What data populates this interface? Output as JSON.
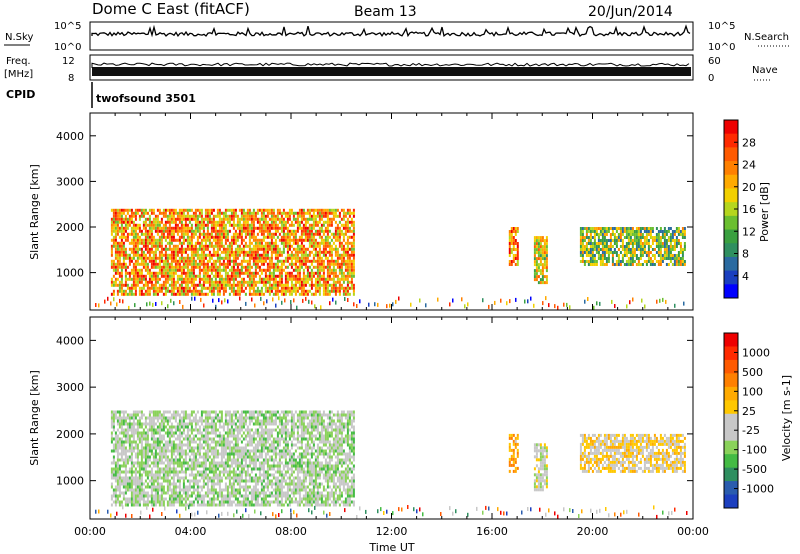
{
  "header": {
    "station": "Dome C East (fitACF)",
    "beam": "Beam 13",
    "date": "20/Jun/2014"
  },
  "small_panels": {
    "nsky_label": "N.Sky",
    "nsky_ticks": [
      "10^5",
      "10^0"
    ],
    "nsearch_label": "N.Search",
    "nsearch_ticks": [
      "10^5",
      "10^0"
    ],
    "freq_label": "Freq.",
    "freq_unit": "[MHz]",
    "freq_ticks": [
      "12",
      "8"
    ],
    "nave_label": "Nave",
    "nave_ticks": [
      "60",
      "0"
    ],
    "cpid_label": "CPID",
    "cpid_value": "twofsound 3501"
  },
  "power_colorbar": {
    "label": "Power [dB]",
    "ticks": [
      "28",
      "24",
      "20",
      "16",
      "12",
      "8",
      "4"
    ],
    "colors": [
      "#0000ff",
      "#1a3fbf",
      "#2a6aa0",
      "#2f8f60",
      "#3aa040",
      "#6bbf30",
      "#b5d61e",
      "#f2d000",
      "#ffaa00",
      "#ff8000",
      "#ff5a00",
      "#ff2a00",
      "#ee0000"
    ]
  },
  "velocity_colorbar": {
    "label": "Velocity [m s-1]",
    "ticks": [
      "1000",
      "500",
      "100",
      "25",
      "-25",
      "-100",
      "-500",
      "-1000"
    ],
    "colors": [
      "#1c3fbf",
      "#2a5cae",
      "#2f8f60",
      "#44bb44",
      "#8ad25a",
      "#c8c8c8",
      "#c8c8c8",
      "#ffc800",
      "#ffaa00",
      "#ff8000",
      "#ff5a00",
      "#ff2a00",
      "#ee0000"
    ]
  },
  "axes": {
    "ylabel": "Slant Range [km]",
    "xlabel": "Time UT",
    "yticks": [
      "4000",
      "3000",
      "2000",
      "1000"
    ],
    "xticks": [
      "00:00",
      "04:00",
      "08:00",
      "12:00",
      "16:00",
      "20:00",
      "00:00"
    ]
  },
  "chart_data": [
    {
      "type": "heatmap",
      "title": "Power",
      "xlabel": "Time UT",
      "ylabel": "Slant Range [km]",
      "xlim": [
        "00:00",
        "24:00"
      ],
      "ylim": [
        180,
        4500
      ],
      "color_scale": "Power [dB]",
      "clim": [
        0,
        32
      ],
      "regions": [
        {
          "t_start": "00:50",
          "t_end": "10:30",
          "range_start_km": 500,
          "range_end_km": 2400,
          "value": 22
        },
        {
          "t_start": "16:40",
          "t_end": "17:00",
          "range_start_km": 1200,
          "range_end_km": 2000,
          "value": 25
        },
        {
          "t_start": "17:40",
          "t_end": "18:10",
          "range_start_km": 800,
          "range_end_km": 1800,
          "value": 18
        },
        {
          "t_start": "19:30",
          "t_end": "23:40",
          "range_start_km": 1200,
          "range_end_km": 2000,
          "value": 14
        }
      ]
    },
    {
      "type": "heatmap",
      "title": "Velocity",
      "xlabel": "Time UT",
      "ylabel": "Slant Range [km]",
      "xlim": [
        "00:00",
        "24:00"
      ],
      "ylim": [
        180,
        4500
      ],
      "color_scale": "Velocity [m s-1]",
      "clim": [
        -1000,
        1000
      ],
      "regions": [
        {
          "t_start": "00:50",
          "t_end": "10:30",
          "range_start_km": 500,
          "range_end_km": 2500,
          "value": -200
        },
        {
          "t_start": "16:40",
          "t_end": "17:00",
          "range_start_km": 1200,
          "range_end_km": 2000,
          "value": 300
        },
        {
          "t_start": "17:40",
          "t_end": "18:10",
          "range_start_km": 800,
          "range_end_km": 1800,
          "value": -80
        },
        {
          "t_start": "19:30",
          "t_end": "23:40",
          "range_start_km": 1200,
          "range_end_km": 2000,
          "value": 80
        }
      ]
    }
  ]
}
